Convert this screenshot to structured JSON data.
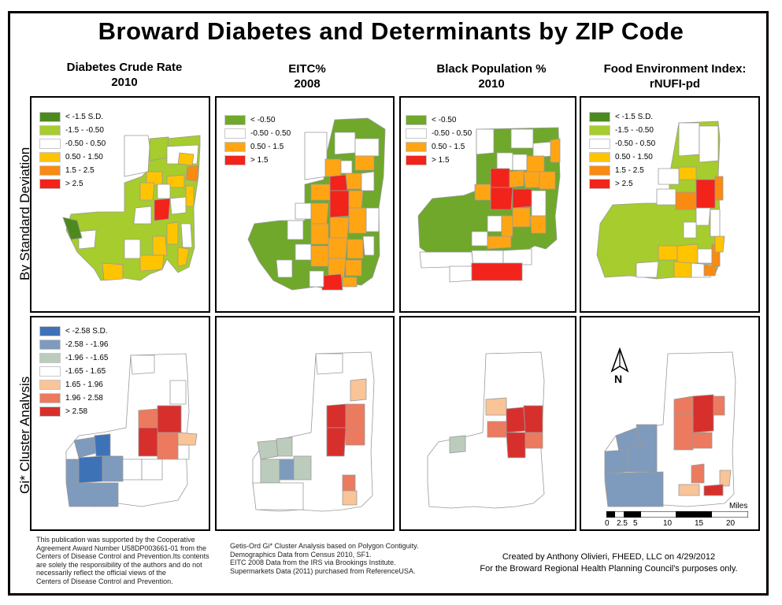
{
  "title": "Broward Diabetes and Determinants by ZIP Code",
  "columns": [
    {
      "line1": "Diabetes Crude Rate",
      "line2": "2010"
    },
    {
      "line1": "EITC%",
      "line2": "2008"
    },
    {
      "line1": "Black Population %",
      "line2": "2010"
    },
    {
      "line1": "Food Environment Index:",
      "line2": "rNUFI-pd"
    }
  ],
  "rows": [
    {
      "label": "By Standard Deviation"
    },
    {
      "label": "Gi* Cluster Analysis"
    }
  ],
  "colors": {
    "dark_green": "#4d8a1e",
    "green": "#6fa82a",
    "light_green": "#a6cc2e",
    "white": "#ffffff",
    "yellow": "#ffc400",
    "orange": "#f98a12",
    "red": "#f2231a",
    "dark_blue": "#3e72b7",
    "blue": "#7e9bbd",
    "gray_green": "#bcccbc",
    "peach": "#f8c498",
    "salmon": "#ec7a5e",
    "crimson": "#d7302c"
  },
  "legends": {
    "sd5": [
      {
        "label": "< -1.5 S.D.",
        "color": "#4d8a1e"
      },
      {
        "label": "-1.5 - -0.50",
        "color": "#a6cc2e"
      },
      {
        "label": "-0.50 - 0.50",
        "color": "#ffffff"
      },
      {
        "label": "0.50 - 1.50",
        "color": "#ffc400"
      },
      {
        "label": "1.5 - 2.5",
        "color": "#f98a12"
      },
      {
        "label": "> 2.5",
        "color": "#f2231a"
      }
    ],
    "eitc": [
      {
        "label": "< -0.50",
        "color": "#6fa82a"
      },
      {
        "label": "-0.50 - 0.50",
        "color": "#ffffff"
      },
      {
        "label": "0.50 - 1.5",
        "color": "#ffa514"
      },
      {
        "label": "> 1.5",
        "color": "#f2231a"
      }
    ],
    "black": [
      {
        "label": "< -0.50",
        "color": "#6fa82a"
      },
      {
        "label": "-0.50 - 0.50",
        "color": "#ffffff"
      },
      {
        "label": "0.50 - 1.5",
        "color": "#ffa514"
      },
      {
        "label": "> 1.5",
        "color": "#f2231a"
      }
    ],
    "gi": [
      {
        "label": "< -2.58 S.D.",
        "color": "#3e72b7"
      },
      {
        "label": "-2.58 - -1.96",
        "color": "#7e9bbd"
      },
      {
        "label": "-1.96 - -1.65",
        "color": "#bcccbc"
      },
      {
        "label": "-1.65 - 1.65",
        "color": "#ffffff"
      },
      {
        "label": "1.65 - 1.96",
        "color": "#f8c498"
      },
      {
        "label": "1.96 - 2.58",
        "color": "#ec7a5e"
      },
      {
        "label": "> 2.58",
        "color": "#d7302c"
      }
    ]
  },
  "north_label": "N",
  "scale": {
    "unit": "Miles",
    "ticks": [
      "0",
      "2.5",
      "5",
      "10",
      "15",
      "20"
    ]
  },
  "footer_left": [
    "This publication was supported by the Cooperative",
    "Agreement Award Number U58DP003661-01 from the",
    "Centers of Disease Control and Prevention.Its contents",
    "are solely the responsibility of the authors and do not",
    "necessarily reflect the official views of the",
    "Centers of Disease Control and Prevention."
  ],
  "footer_middle": [
    "Getis-Ord Gi* Cluster Analysis based on Polygon Contiguity.",
    "Demographics Data from Census 2010, SF1.",
    "EITC 2008 Data from the IRS via Brookings Institute.",
    "Supermarkets Data (2011) purchased from ReferenceUSA."
  ],
  "credit": {
    "line1": "Created by Anthony Olivieri, FHEED, LLC on 4/29/2012",
    "line2": "For the Broward Regional Health Planning Council's purposes only."
  }
}
